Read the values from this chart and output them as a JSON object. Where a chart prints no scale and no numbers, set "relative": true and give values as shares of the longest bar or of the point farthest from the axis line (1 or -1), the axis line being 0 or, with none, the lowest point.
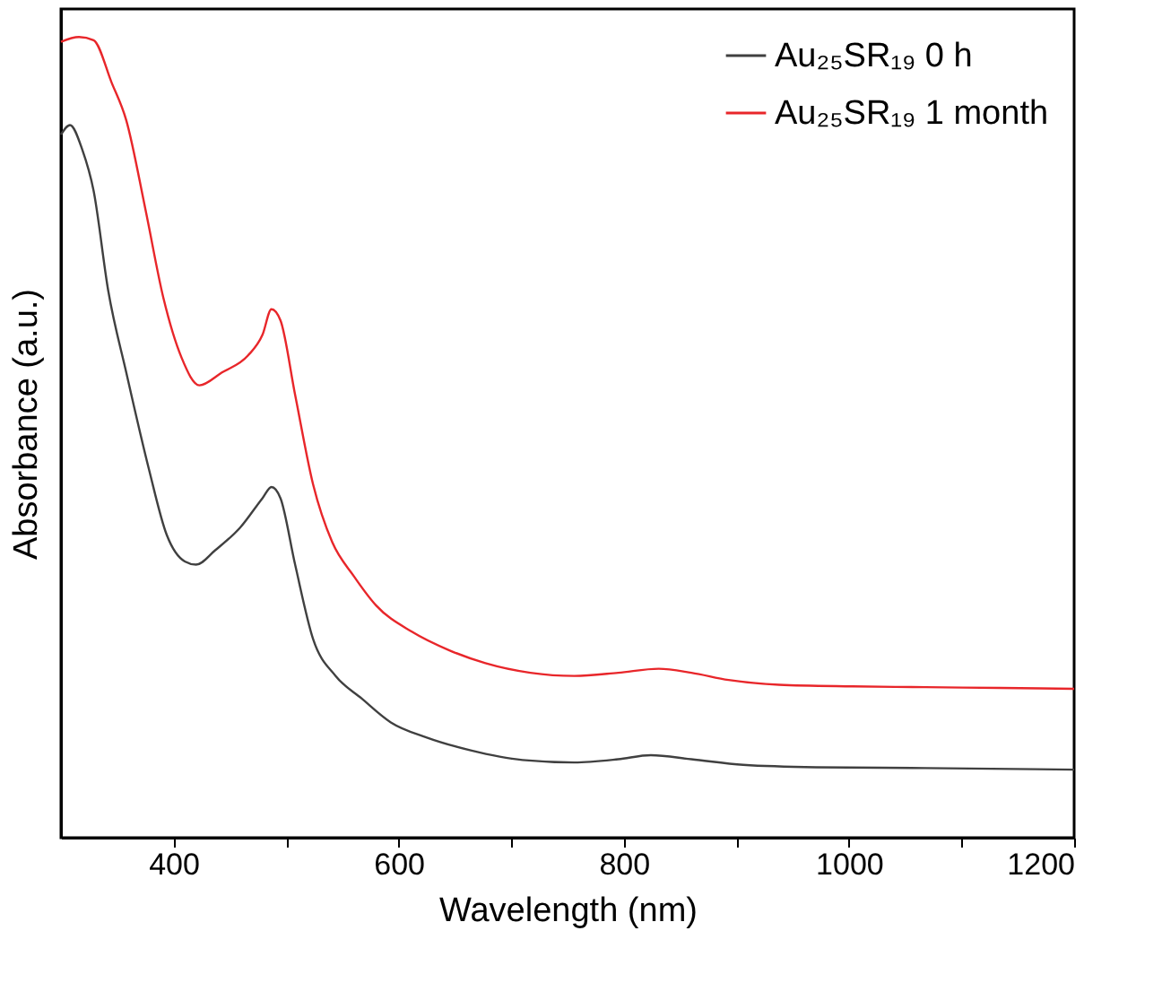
{
  "chart_data": {
    "type": "line",
    "xlabel": "Wavelength (nm)",
    "ylabel": "Absorbance (a.u.)",
    "relative": true,
    "xlim": [
      300,
      1200
    ],
    "xticks": [
      400,
      {
        "value": 500,
        "label": null
      },
      600,
      {
        "value": 700,
        "label": null
      },
      800,
      {
        "value": 900,
        "label": null
      },
      1000,
      {
        "value": 1100,
        "label": null
      },
      1200
    ],
    "legend": "top right",
    "grid": false,
    "line_style": "solid",
    "series": [
      {
        "name": "Au₂₅SR₁₉ 0 h",
        "color": "#404040",
        "x": [
          300,
          308,
          319,
          329,
          342,
          358,
          378,
          394,
          410,
          420,
          437,
          459,
          479,
          487,
          495,
          508,
          524,
          544,
          567,
          593,
          625,
          664,
          710,
          756,
          795,
          824,
          860,
          906,
          971,
          1068,
          1200
        ],
        "values": [
          0.878,
          0.89,
          0.859,
          0.808,
          0.683,
          0.581,
          0.461,
          0.378,
          0.345,
          0.341,
          0.359,
          0.387,
          0.424,
          0.438,
          0.424,
          0.341,
          0.248,
          0.202,
          0.174,
          0.144,
          0.125,
          0.109,
          0.097,
          0.094,
          0.098,
          0.103,
          0.098,
          0.091,
          0.088,
          0.087,
          0.085
        ]
      },
      {
        "name": "Au₂₅SR₁₉ 1 month",
        "color": "#e8262a",
        "x": [
          300,
          316,
          329,
          345,
          358,
          375,
          391,
          407,
          423,
          443,
          466,
          479,
          487,
          495,
          508,
          524,
          541,
          560,
          580,
          612,
          645,
          677,
          717,
          756,
          795,
          831,
          860,
          893,
          938,
          1003,
          1068,
          1134,
          1200
        ],
        "values": [
          0.994,
          1.0,
          0.996,
          0.943,
          0.896,
          0.785,
          0.674,
          0.6,
          0.565,
          0.581,
          0.602,
          0.628,
          0.66,
          0.646,
          0.553,
          0.441,
          0.369,
          0.327,
          0.29,
          0.257,
          0.234,
          0.218,
          0.206,
          0.202,
          0.206,
          0.211,
          0.206,
          0.197,
          0.191,
          0.189,
          0.188,
          0.187,
          0.186
        ]
      }
    ]
  }
}
